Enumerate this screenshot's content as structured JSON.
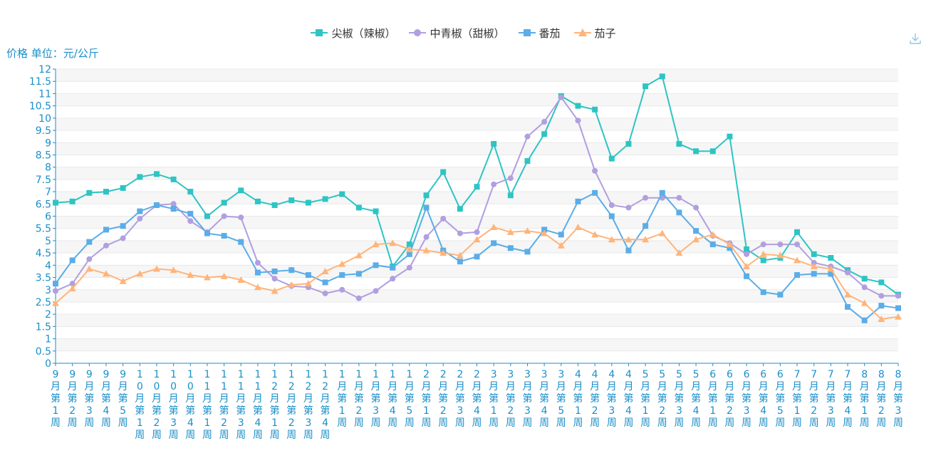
{
  "colors": {
    "axis": "#1a8fc9",
    "grid": "#e9e9e9",
    "band": "#f6f6f6",
    "series": [
      "#2ec4c4",
      "#b19fdf",
      "#5aade8",
      "#ffb47a"
    ]
  },
  "icons": {
    "download": "download-icon"
  },
  "chart_data": {
    "type": "line",
    "ylabel": "价格 单位：元/公斤",
    "ylim": [
      0,
      12
    ],
    "yticks": [
      "0",
      "0.5",
      "1",
      "1.5",
      "2",
      "2.5",
      "3",
      "3.5",
      "4",
      "4.5",
      "5",
      "5.5",
      "6",
      "6.5",
      "7",
      "7.5",
      "8",
      "8.5",
      "9",
      "9.5",
      "10",
      "10.5",
      "11",
      "11.5",
      "12"
    ],
    "legend_position": "top-center",
    "grid": true,
    "categories": [
      "9月第1周",
      "9月第2周",
      "9月第3周",
      "9月第4周",
      "9月第5周",
      "10月第1周",
      "10月第2周",
      "10月第3周",
      "10月第4周",
      "11月第1周",
      "11月第2周",
      "11月第3周",
      "11月第4周",
      "12月第1周",
      "12月第2周",
      "12月第3周",
      "12月第4周",
      "1月第1周",
      "1月第2周",
      "1月第3周",
      "1月第4周",
      "1月第5周",
      "2月第1周",
      "2月第2周",
      "2月第3周",
      "2月第4周",
      "3月第1周",
      "3月第2周",
      "3月第3周",
      "3月第4周",
      "3月第5周",
      "4月第1周",
      "4月第2周",
      "4月第3周",
      "4月第4周",
      "5月第1周",
      "5月第2周",
      "5月第3周",
      "5月第4周",
      "6月第1周",
      "6月第2周",
      "6月第3周",
      "6月第4周",
      "6月第5周",
      "7月第1周",
      "7月第2周",
      "7月第3周",
      "7月第4周",
      "8月第1周",
      "8月第2周",
      "8月第3周"
    ],
    "series": [
      {
        "name": "尖椒（辣椒）",
        "symbol": "square",
        "values": [
          6.55,
          6.6,
          6.95,
          7.0,
          7.15,
          7.6,
          7.72,
          7.5,
          7.0,
          6.0,
          6.55,
          7.05,
          6.6,
          6.45,
          6.65,
          6.55,
          6.7,
          6.9,
          6.35,
          6.2,
          3.95,
          4.85,
          6.85,
          7.8,
          6.3,
          7.2,
          8.95,
          6.85,
          8.25,
          9.35,
          10.9,
          10.5,
          10.35,
          8.35,
          8.95,
          11.3,
          11.7,
          8.95,
          8.65,
          8.65,
          9.25,
          4.65,
          4.2,
          4.3,
          5.35,
          4.45,
          4.3,
          3.8,
          3.45,
          3.3,
          2.8
        ]
      },
      {
        "name": "中青椒（甜椒）",
        "symbol": "circle",
        "values": [
          2.95,
          3.25,
          4.25,
          4.8,
          5.1,
          5.9,
          6.45,
          6.5,
          5.8,
          5.35,
          6.0,
          5.95,
          4.1,
          3.45,
          3.15,
          3.1,
          2.85,
          3.0,
          2.65,
          2.95,
          3.45,
          3.9,
          5.15,
          5.9,
          5.3,
          5.35,
          7.3,
          7.55,
          9.25,
          9.85,
          10.85,
          9.9,
          7.85,
          6.45,
          6.35,
          6.75,
          6.75,
          6.75,
          6.35,
          5.2,
          4.9,
          4.45,
          4.85,
          4.85,
          4.85,
          4.1,
          3.95,
          3.7,
          3.1,
          2.75,
          2.75
        ]
      },
      {
        "name": "番茄",
        "symbol": "square",
        "values": [
          3.25,
          4.2,
          4.95,
          5.45,
          5.6,
          6.2,
          6.45,
          6.3,
          6.1,
          5.3,
          5.2,
          4.95,
          3.7,
          3.75,
          3.8,
          3.6,
          3.3,
          3.6,
          3.65,
          4.0,
          3.9,
          4.45,
          6.35,
          4.6,
          4.15,
          4.35,
          4.9,
          4.7,
          4.55,
          5.45,
          5.25,
          6.6,
          6.95,
          6.0,
          4.6,
          5.6,
          6.95,
          6.15,
          5.4,
          4.85,
          4.7,
          3.55,
          2.9,
          2.8,
          3.6,
          3.65,
          3.65,
          2.3,
          1.75,
          2.35,
          2.25
        ]
      },
      {
        "name": "茄子",
        "symbol": "triangle",
        "values": [
          2.45,
          3.05,
          3.85,
          3.65,
          3.35,
          3.65,
          3.85,
          3.8,
          3.6,
          3.5,
          3.55,
          3.4,
          3.1,
          2.95,
          3.2,
          3.25,
          3.75,
          4.05,
          4.4,
          4.85,
          4.9,
          4.65,
          4.6,
          4.5,
          4.4,
          5.05,
          5.55,
          5.35,
          5.4,
          5.3,
          4.8,
          5.55,
          5.25,
          5.05,
          5.05,
          5.05,
          5.3,
          4.5,
          5.05,
          5.25,
          4.85,
          3.95,
          4.45,
          4.4,
          4.2,
          3.95,
          3.85,
          2.8,
          2.45,
          1.8,
          1.9
        ]
      }
    ]
  }
}
